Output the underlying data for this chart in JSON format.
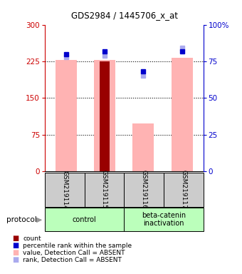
{
  "title": "GDS2984 / 1445706_x_at",
  "samples": [
    "GSM219114",
    "GSM219115",
    "GSM219116",
    "GSM219117"
  ],
  "pink_bar_values": [
    228,
    228,
    98,
    232
  ],
  "dark_red_bar_values": [
    null,
    225,
    null,
    null
  ],
  "blue_square_values": [
    80,
    82,
    68,
    82
  ],
  "light_blue_square_values": [
    78,
    79,
    65,
    84
  ],
  "ylim_left": [
    0,
    300
  ],
  "ylim_right": [
    0,
    100
  ],
  "yticks_left": [
    0,
    75,
    150,
    225,
    300
  ],
  "yticks_right": [
    0,
    25,
    50,
    75,
    100
  ],
  "ytick_labels_right": [
    "0",
    "25",
    "50",
    "75",
    "100%"
  ],
  "grid_values": [
    75,
    150,
    225
  ],
  "pink_color": "#ffb3b3",
  "dark_red_color": "#990000",
  "blue_color": "#0000cc",
  "light_blue_color": "#aaaaee",
  "bar_width": 0.55,
  "dark_red_bar_width": 0.25,
  "left_axis_color": "#cc0000",
  "right_axis_color": "#0000cc",
  "sample_box_color": "#cccccc",
  "group_box_color": "#bbffbb",
  "legend_items": [
    {
      "color": "#990000",
      "label": "count"
    },
    {
      "color": "#0000cc",
      "label": "percentile rank within the sample"
    },
    {
      "color": "#ffb3b3",
      "label": "value, Detection Call = ABSENT"
    },
    {
      "color": "#aaaaee",
      "label": "rank, Detection Call = ABSENT"
    }
  ]
}
